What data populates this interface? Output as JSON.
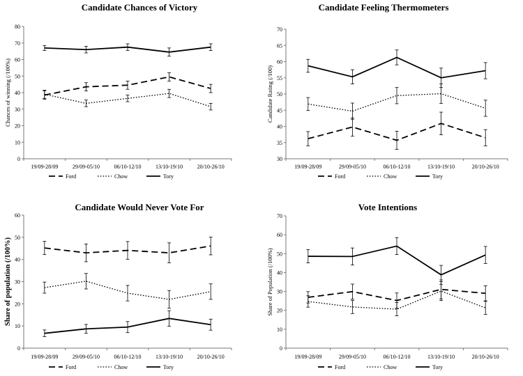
{
  "chart_data": [
    {
      "type": "line",
      "title": "Candidate Chances of Victory",
      "xlabel": "",
      "ylabel": "Chances of winning  (/100%)",
      "ylim": [
        0,
        80
      ],
      "yticks": [
        0,
        10,
        20,
        30,
        40,
        50,
        60,
        70,
        80
      ],
      "categories": [
        "19/09-28/09",
        "29/09-05/10",
        "06/10-12/10",
        "13/10-19/10",
        "20/10-26/10"
      ],
      "series": [
        {
          "name": "Ford",
          "style": "dashed",
          "values": [
            38.5,
            43.5,
            44.5,
            49.5,
            42.5
          ],
          "errors": [
            2.5,
            2.5,
            2.5,
            2.5,
            2.5
          ]
        },
        {
          "name": "Chow",
          "style": "dotted",
          "values": [
            39.0,
            33.5,
            36.5,
            39.5,
            31.5
          ],
          "errors": [
            2.5,
            2.0,
            2.0,
            2.5,
            2.0
          ]
        },
        {
          "name": "Tory",
          "style": "solid",
          "values": [
            67.0,
            66.0,
            67.5,
            64.5,
            67.5
          ],
          "errors": [
            1.5,
            2.0,
            2.0,
            2.5,
            2.0
          ]
        }
      ],
      "legend_position": "bottom-center"
    },
    {
      "type": "line",
      "title": "Candidate Feeling Thermometers",
      "xlabel": "",
      "ylabel": "Candidate Rating (/100)",
      "ylim": [
        30,
        70
      ],
      "yticks": [
        30,
        35,
        40,
        45,
        50,
        55,
        60,
        65,
        70
      ],
      "categories": [
        "19/09-28/09",
        "29/09-05/10",
        "06/10-12/10",
        "13/10-19/10",
        "20/10-26/10"
      ],
      "series": [
        {
          "name": "Ford",
          "style": "dashed",
          "values": [
            36.2,
            39.8,
            35.7,
            40.9,
            36.5
          ],
          "errors": [
            2.2,
            2.8,
            2.8,
            3.5,
            2.5
          ]
        },
        {
          "name": "Chow",
          "style": "dotted",
          "values": [
            46.9,
            44.7,
            49.5,
            50.1,
            45.6
          ],
          "errors": [
            2.0,
            2.5,
            2.5,
            3.0,
            2.5
          ]
        },
        {
          "name": "Tory",
          "style": "solid",
          "values": [
            58.7,
            55.3,
            61.3,
            55.0,
            57.2
          ],
          "errors": [
            2.0,
            2.2,
            2.3,
            3.0,
            2.5
          ]
        }
      ],
      "legend_position": "bottom-center"
    },
    {
      "type": "line",
      "title": "Candidate Would Never Vote For",
      "xlabel": "",
      "ylabel": "Share of population (/100%)",
      "ylim": [
        0,
        60
      ],
      "yticks": [
        0,
        10,
        20,
        30,
        40,
        50,
        60
      ],
      "categories": [
        "19/09-28/09",
        "29/09-05/10",
        "06/10-12/10",
        "13/10-19/10",
        "20/10-26/10"
      ],
      "series": [
        {
          "name": "Ford",
          "style": "dashed",
          "values": [
            45.2,
            43.0,
            44.1,
            43.0,
            46.1
          ],
          "errors": [
            3.0,
            4.0,
            4.0,
            4.5,
            4.0
          ]
        },
        {
          "name": "Chow",
          "style": "dotted",
          "values": [
            27.3,
            30.2,
            24.8,
            22.0,
            25.5
          ],
          "errors": [
            2.5,
            3.5,
            3.5,
            4.0,
            3.5
          ]
        },
        {
          "name": "Tory",
          "style": "solid",
          "values": [
            6.7,
            8.7,
            9.5,
            13.4,
            10.6
          ],
          "errors": [
            1.5,
            2.0,
            2.5,
            3.5,
            2.5
          ]
        }
      ],
      "legend_position": "bottom-center"
    },
    {
      "type": "line",
      "title": "Vote Intentions",
      "xlabel": "",
      "ylabel": "Share of Population (/100%)",
      "ylim": [
        0,
        70
      ],
      "yticks": [
        0,
        10,
        20,
        30,
        40,
        50,
        60,
        70
      ],
      "categories": [
        "19/09-28/09",
        "29/09-05/10",
        "06/10-12/10",
        "13/10-19/10",
        "20/10-26/10"
      ],
      "series": [
        {
          "name": "Ford",
          "style": "dashed",
          "values": [
            26.9,
            29.9,
            25.2,
            31.1,
            29.0
          ],
          "errors": [
            3.0,
            4.0,
            4.0,
            5.0,
            4.0
          ]
        },
        {
          "name": "Chow",
          "style": "dotted",
          "values": [
            24.7,
            21.8,
            20.6,
            30.2,
            21.3
          ],
          "errors": [
            3.0,
            3.5,
            3.5,
            5.0,
            3.5
          ]
        },
        {
          "name": "Tory",
          "style": "solid",
          "values": [
            48.6,
            48.5,
            54.0,
            38.8,
            49.3
          ],
          "errors": [
            3.5,
            4.5,
            4.5,
            5.0,
            4.5
          ]
        }
      ],
      "legend_position": "bottom-center"
    }
  ]
}
